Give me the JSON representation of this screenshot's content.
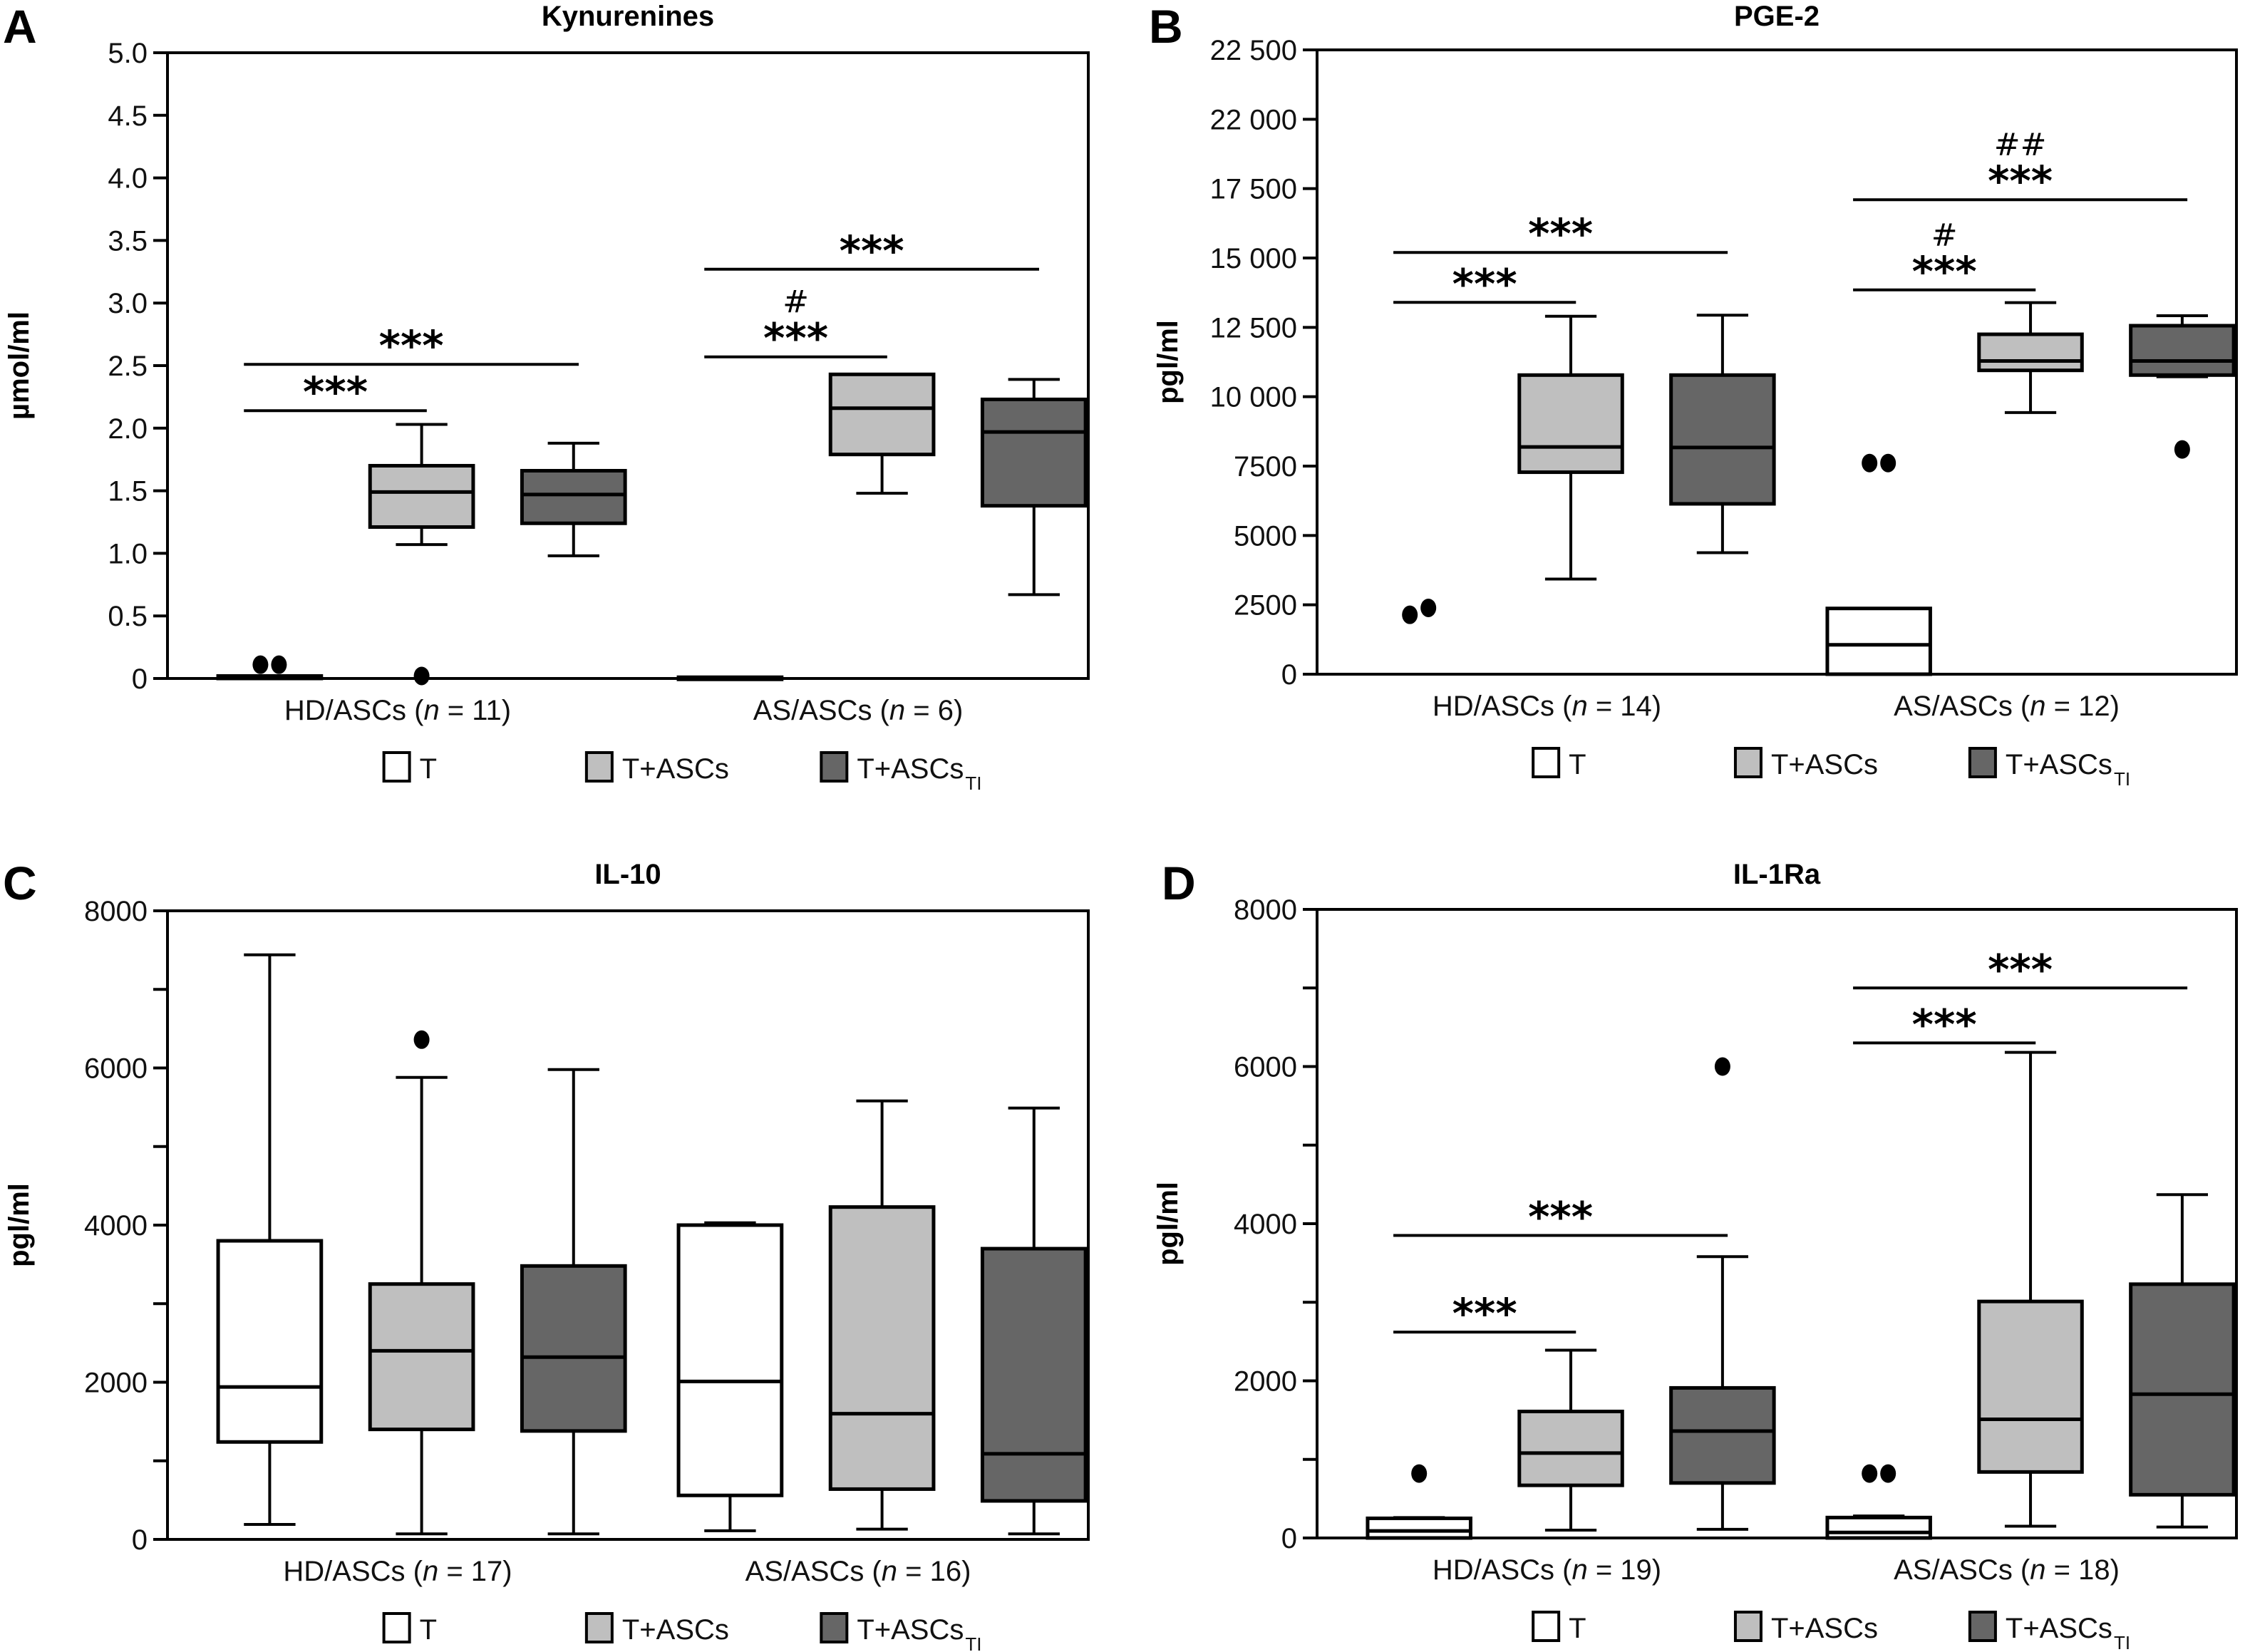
{
  "chart_data": [
    {
      "type": "box",
      "panel_letter": "A",
      "title": "Kynurenines",
      "ylabel": "µmol/ml",
      "xlabel": "",
      "ylim": [
        0,
        5.0
      ],
      "yticks": [
        0,
        0.5,
        1.0,
        1.5,
        2.0,
        2.5,
        3.0,
        3.5,
        4.0,
        4.5,
        5.0
      ],
      "ytick_labels": [
        "0",
        "0.5",
        "1.0",
        "1.5",
        "2.0",
        "2.5",
        "3.0",
        "3.5",
        "4.0",
        "4.5",
        "5.0"
      ],
      "grid": false,
      "legend_position": "bottom",
      "groups": [
        {
          "label_prefix": "HD/ASCs (",
          "label_n": "n",
          "label_suffix": " = 11)"
        },
        {
          "label_prefix": "AS/ASCs (",
          "label_n": "n",
          "label_suffix": " = 6)"
        }
      ],
      "series": [
        {
          "name": "T",
          "boxes": [
            {
              "min": 0,
              "q1": 0,
              "median": 0.01,
              "q3": 0.02,
              "max": 0.02,
              "outliers": [
                0.11,
                0.11
              ]
            },
            {
              "min": 0,
              "q1": 0,
              "median": 0.005,
              "q3": 0.01,
              "max": 0.01,
              "outliers": []
            }
          ]
        },
        {
          "name": "T+ASCs",
          "boxes": [
            {
              "min": 1.07,
              "q1": 1.21,
              "median": 1.49,
              "q3": 1.7,
              "max": 2.03,
              "outliers": [
                0.02
              ]
            },
            {
              "min": 1.48,
              "q1": 1.79,
              "median": 2.16,
              "q3": 2.43,
              "max": 2.43,
              "outliers": []
            }
          ]
        },
        {
          "name": "T+ASCsTI",
          "boxes": [
            {
              "min": 0.98,
              "q1": 1.24,
              "median": 1.47,
              "q3": 1.66,
              "max": 1.88,
              "outliers": []
            },
            {
              "min": 0.67,
              "q1": 1.38,
              "median": 1.97,
              "q3": 2.23,
              "max": 2.39,
              "outliers": []
            }
          ]
        }
      ],
      "annotations": [
        {
          "text": "***",
          "from": [
            0,
            0
          ],
          "to": [
            0,
            1
          ],
          "y": 2.14
        },
        {
          "text": "***",
          "from": [
            0,
            0
          ],
          "to": [
            0,
            2
          ],
          "y": 2.51
        },
        {
          "text": "***",
          "extra": "#",
          "from": [
            1,
            0
          ],
          "to": [
            1,
            1
          ],
          "y": 2.57
        },
        {
          "text": "***",
          "from": [
            1,
            0
          ],
          "to": [
            1,
            2
          ],
          "y": 3.27
        }
      ]
    },
    {
      "type": "box",
      "panel_letter": "B",
      "title": "PGE-2",
      "ylabel": "pgl/ml",
      "xlabel": "",
      "ylim": [
        0,
        22500
      ],
      "axis_break": "between 17 500 and 22 000 (equal tick spacing)",
      "yticks": [
        0,
        2500,
        5000,
        7500,
        10000,
        12500,
        15000,
        17500,
        22000,
        22500
      ],
      "ytick_labels": [
        "0",
        "2500",
        "5000",
        "7500",
        "10 000",
        "12 500",
        "15 000",
        "17 500",
        "22 000",
        "22 500"
      ],
      "grid": false,
      "legend_position": "bottom",
      "groups": [
        {
          "label_prefix": "HD/ASCs (",
          "label_n": "n",
          "label_suffix": " = 14)"
        },
        {
          "label_prefix": "AS/ASCs (",
          "label_n": "n",
          "label_suffix": " = 12)"
        }
      ],
      "series": [
        {
          "name": "T",
          "boxes": [
            {
              "min": null,
              "q1": null,
              "median": null,
              "q3": null,
              "max": null,
              "outliers": [
                2140,
                2390
              ]
            },
            {
              "min": 0,
              "q1": 0,
              "median": 1060,
              "q3": 2370,
              "max": 2370,
              "outliers": [
                7610,
                7610
              ]
            }
          ]
        },
        {
          "name": "T+ASCs",
          "boxes": [
            {
              "min": 3430,
              "q1": 7280,
              "median": 8190,
              "q3": 10780,
              "max": 12900,
              "outliers": []
            },
            {
              "min": 9430,
              "q1": 10950,
              "median": 11290,
              "q3": 12250,
              "max": 13390,
              "outliers": []
            }
          ]
        },
        {
          "name": "T+ASCsTI",
          "boxes": [
            {
              "min": 4380,
              "q1": 6140,
              "median": 8170,
              "q3": 10780,
              "max": 12940,
              "outliers": []
            },
            {
              "min": 10720,
              "q1": 10780,
              "median": 11290,
              "q3": 12560,
              "max": 12920,
              "outliers": [
                8100
              ]
            }
          ]
        }
      ],
      "annotations": [
        {
          "text": "***",
          "from": [
            0,
            0
          ],
          "to": [
            0,
            1
          ],
          "y": 13400
        },
        {
          "text": "***",
          "from": [
            0,
            0
          ],
          "to": [
            0,
            2
          ],
          "y": 15200
        },
        {
          "text": "***",
          "extra": "#",
          "from": [
            1,
            0
          ],
          "to": [
            1,
            1
          ],
          "y": 13850
        },
        {
          "text": "***",
          "extra": "##",
          "from": [
            1,
            0
          ],
          "to": [
            1,
            2
          ],
          "y": 17100
        }
      ]
    },
    {
      "type": "box",
      "panel_letter": "C",
      "title": "IL-10",
      "ylabel": "pgl/ml",
      "xlabel": "",
      "ylim": [
        0,
        8000
      ],
      "yticks": [
        0,
        2000,
        4000,
        6000,
        8000
      ],
      "ytick_labels": [
        "0",
        "2000",
        "4000",
        "6000",
        "8000"
      ],
      "minor_yticks": [
        1000,
        3000,
        5000,
        7000
      ],
      "grid": false,
      "legend_position": "bottom",
      "groups": [
        {
          "label_prefix": "HD/ASCs (",
          "label_n": "n",
          "label_suffix": " = 17)"
        },
        {
          "label_prefix": "AS/ASCs (",
          "label_n": "n",
          "label_suffix": " = 16)"
        }
      ],
      "series": [
        {
          "name": "T",
          "boxes": [
            {
              "min": 190,
              "q1": 1240,
              "median": 1940,
              "q3": 3800,
              "max": 7440,
              "outliers": []
            },
            {
              "min": 110,
              "q1": 560,
              "median": 2010,
              "q3": 4000,
              "max": 4030,
              "outliers": []
            }
          ]
        },
        {
          "name": "T+ASCs",
          "boxes": [
            {
              "min": 70,
              "q1": 1400,
              "median": 2400,
              "q3": 3250,
              "max": 5880,
              "outliers": [
                6360
              ]
            },
            {
              "min": 130,
              "q1": 640,
              "median": 1600,
              "q3": 4230,
              "max": 5580,
              "outliers": []
            }
          ]
        },
        {
          "name": "T+ASCsTI",
          "boxes": [
            {
              "min": 70,
              "q1": 1380,
              "median": 2320,
              "q3": 3480,
              "max": 5980,
              "outliers": []
            },
            {
              "min": 70,
              "q1": 490,
              "median": 1090,
              "q3": 3700,
              "max": 5490,
              "outliers": []
            }
          ]
        }
      ],
      "annotations": []
    },
    {
      "type": "box",
      "panel_letter": "D",
      "title": "IL-1Ra",
      "ylabel": "pgl/ml",
      "xlabel": "",
      "ylim": [
        0,
        8000
      ],
      "yticks": [
        0,
        2000,
        4000,
        6000,
        8000
      ],
      "ytick_labels": [
        "0",
        "2000",
        "4000",
        "6000",
        "8000"
      ],
      "minor_yticks": [
        1000,
        3000,
        5000,
        7000
      ],
      "grid": false,
      "legend_position": "bottom",
      "groups": [
        {
          "label_prefix": "HD/ASCs (",
          "label_n": "n",
          "label_suffix": " = 19)"
        },
        {
          "label_prefix": "AS/ASCs (",
          "label_n": "n",
          "label_suffix": " = 18)"
        }
      ],
      "series": [
        {
          "name": "T",
          "boxes": [
            {
              "min": 0,
              "q1": 0,
              "median": 90,
              "q3": 250,
              "max": 260,
              "outliers": [
                820
              ]
            },
            {
              "min": 0,
              "q1": 0,
              "median": 70,
              "q3": 260,
              "max": 280,
              "outliers": [
                820,
                820
              ]
            }
          ]
        },
        {
          "name": "T+ASCs",
          "boxes": [
            {
              "min": 100,
              "q1": 670,
              "median": 1080,
              "q3": 1610,
              "max": 2390,
              "outliers": []
            },
            {
              "min": 150,
              "q1": 840,
              "median": 1510,
              "q3": 3010,
              "max": 6180,
              "outliers": []
            }
          ]
        },
        {
          "name": "T+ASCsTI",
          "boxes": [
            {
              "min": 110,
              "q1": 700,
              "median": 1360,
              "q3": 1910,
              "max": 3580,
              "outliers": [
                6000
              ]
            },
            {
              "min": 140,
              "q1": 550,
              "median": 1830,
              "q3": 3230,
              "max": 4370,
              "outliers": []
            }
          ]
        }
      ],
      "annotations": [
        {
          "text": "***",
          "from": [
            0,
            0
          ],
          "to": [
            0,
            1
          ],
          "y": 2620
        },
        {
          "text": "***",
          "from": [
            0,
            0
          ],
          "to": [
            0,
            2
          ],
          "y": 3850
        },
        {
          "text": "***",
          "from": [
            1,
            0
          ],
          "to": [
            1,
            1
          ],
          "y": 6300
        },
        {
          "text": "***",
          "from": [
            1,
            0
          ],
          "to": [
            1,
            2
          ],
          "y": 7000
        }
      ]
    }
  ],
  "legend": {
    "items": [
      {
        "label": "T",
        "sub": "",
        "color": "#ffffff"
      },
      {
        "label": "T+ASCs",
        "sub": "",
        "color": "#bfbfbf"
      },
      {
        "label": "T+ASCs",
        "sub": "TI",
        "color": "#666666"
      }
    ]
  },
  "colors": {
    "T": "#ffffff",
    "T+ASCs": "#bfbfbf",
    "T+ASCsTI": "#666666",
    "stroke": "#000000"
  }
}
